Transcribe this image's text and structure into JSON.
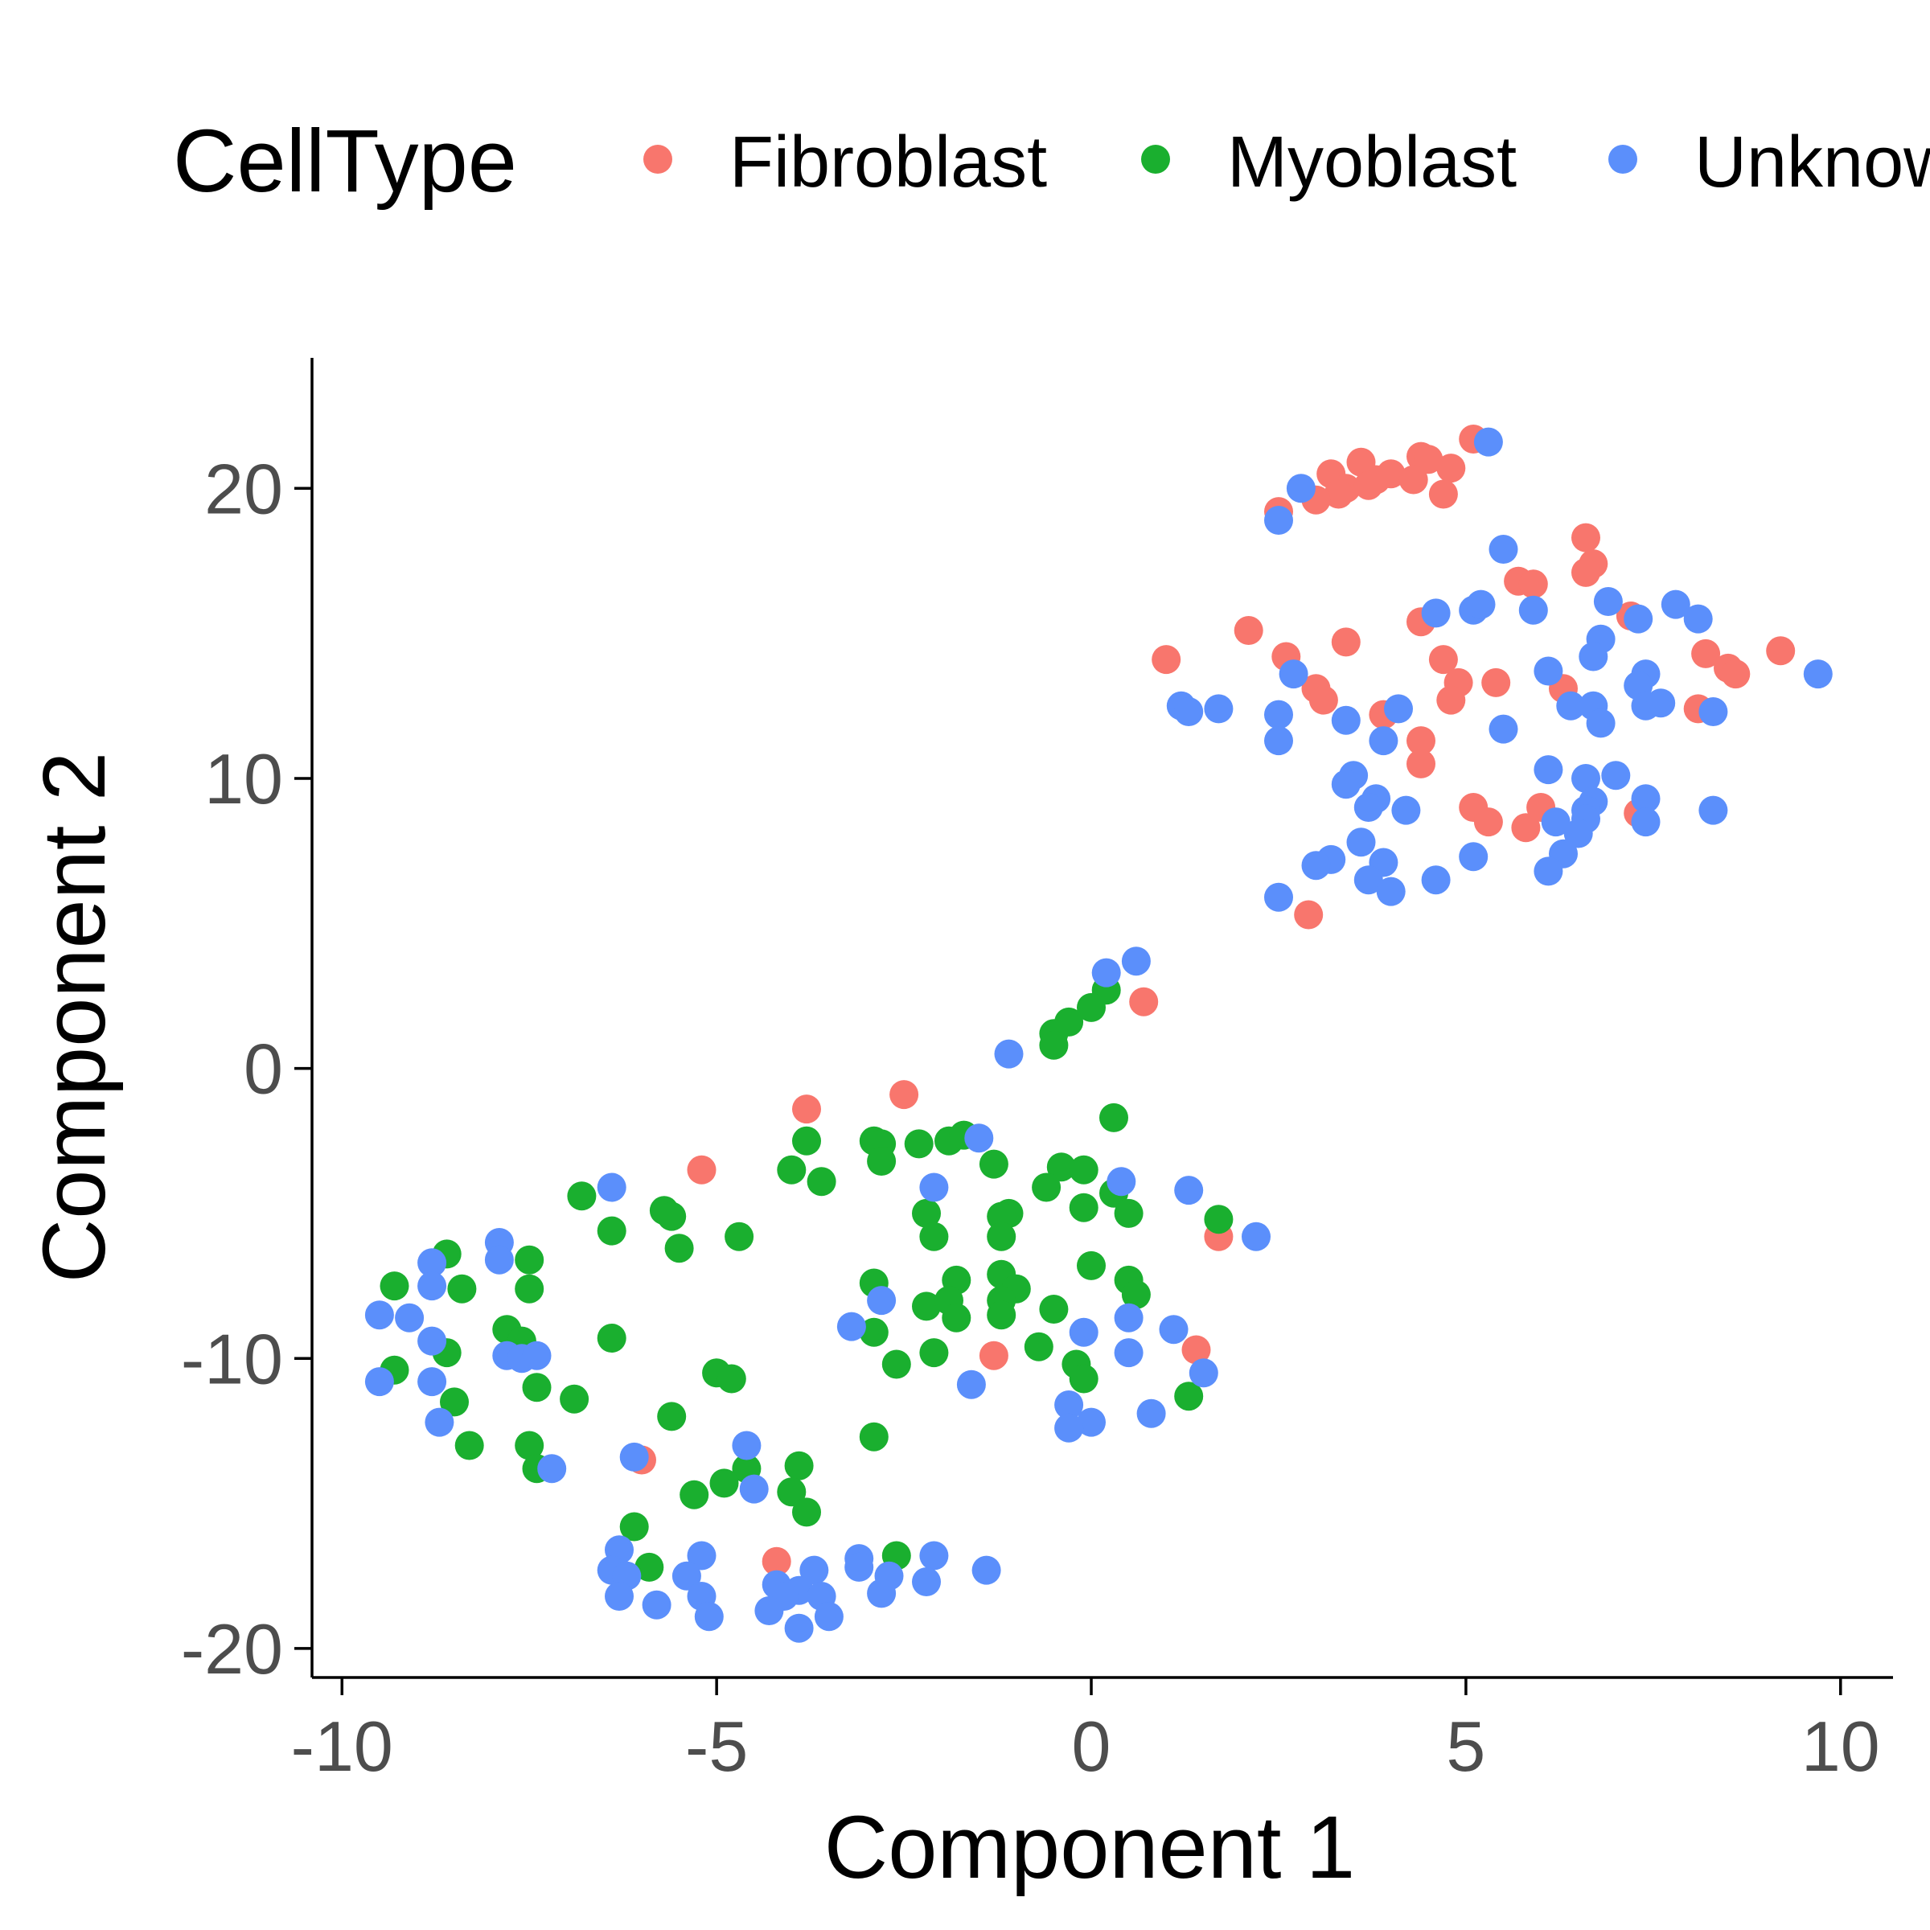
{
  "chart_data": {
    "type": "scatter",
    "xlabel": "Component 1",
    "ylabel": "Component 2",
    "xlim": [
      -10.4,
      10.7
    ],
    "ylim": [
      -21.0,
      24.5
    ],
    "x_ticks": [
      -10,
      -5,
      0,
      5,
      10
    ],
    "y_ticks": [
      -20,
      -10,
      0,
      10,
      20
    ],
    "x_tick_labels": [
      "-10",
      "-5",
      "0",
      "5",
      "10"
    ],
    "y_tick_labels": [
      "-20",
      "-10",
      "0",
      "10",
      "20"
    ],
    "grid": false,
    "legend": {
      "title": "CellType",
      "position": "top",
      "entries": [
        "Fibroblast",
        "Myoblast",
        "Unknown"
      ]
    },
    "colors": {
      "Fibroblast": "#F8766D",
      "Myoblast": "#1AAF2F",
      "Unknown": "#5B8FFB"
    },
    "series": [
      {
        "name": "Fibroblast",
        "points": [
          [
            5.1,
            21.7
          ],
          [
            4.4,
            21.1
          ],
          [
            4.5,
            21.0
          ],
          [
            3.6,
            20.9
          ],
          [
            3.2,
            20.5
          ],
          [
            4.0,
            20.5
          ],
          [
            3.8,
            20.3
          ],
          [
            4.3,
            20.3
          ],
          [
            4.8,
            20.7
          ],
          [
            3.4,
            20.0
          ],
          [
            3.7,
            20.1
          ],
          [
            3.3,
            19.8
          ],
          [
            3.0,
            19.6
          ],
          [
            4.7,
            19.8
          ],
          [
            2.5,
            19.2
          ],
          [
            6.6,
            18.3
          ],
          [
            6.7,
            17.4
          ],
          [
            6.6,
            17.1
          ],
          [
            5.7,
            16.8
          ],
          [
            5.9,
            16.7
          ],
          [
            7.2,
            15.6
          ],
          [
            4.4,
            15.4
          ],
          [
            2.1,
            15.1
          ],
          [
            3.4,
            14.7
          ],
          [
            1.0,
            14.1
          ],
          [
            2.6,
            14.2
          ],
          [
            4.7,
            14.1
          ],
          [
            8.2,
            14.3
          ],
          [
            8.5,
            13.8
          ],
          [
            8.6,
            13.6
          ],
          [
            9.2,
            14.4
          ],
          [
            3.0,
            13.1
          ],
          [
            3.1,
            12.7
          ],
          [
            4.9,
            13.3
          ],
          [
            4.8,
            12.7
          ],
          [
            5.4,
            13.3
          ],
          [
            6.3,
            13.1
          ],
          [
            3.9,
            12.2
          ],
          [
            4.4,
            11.3
          ],
          [
            4.4,
            10.5
          ],
          [
            8.1,
            12.4
          ],
          [
            5.1,
            9.0
          ],
          [
            5.3,
            8.5
          ],
          [
            5.8,
            8.3
          ],
          [
            6.0,
            9.0
          ],
          [
            7.3,
            8.8
          ],
          [
            2.9,
            5.3
          ],
          [
            0.7,
            2.3
          ],
          [
            -2.5,
            -0.9
          ],
          [
            -3.8,
            -1.4
          ],
          [
            -5.2,
            -3.5
          ],
          [
            1.7,
            -5.8
          ],
          [
            1.4,
            -9.7
          ],
          [
            -1.3,
            -9.9
          ],
          [
            -6.0,
            -13.5
          ],
          [
            -4.2,
            -17.0
          ]
        ]
      },
      {
        "name": "Myoblast",
        "points": [
          [
            0.2,
            2.7
          ],
          [
            0.0,
            2.1
          ],
          [
            -0.3,
            1.6
          ],
          [
            -0.5,
            1.2
          ],
          [
            -0.5,
            0.8
          ],
          [
            0.3,
            -1.7
          ],
          [
            -3.8,
            -2.5
          ],
          [
            -2.9,
            -2.5
          ],
          [
            -2.8,
            -2.6
          ],
          [
            -2.3,
            -2.6
          ],
          [
            -1.9,
            -2.5
          ],
          [
            -1.7,
            -2.3
          ],
          [
            -2.8,
            -3.2
          ],
          [
            -1.3,
            -3.3
          ],
          [
            -4.0,
            -3.5
          ],
          [
            -3.6,
            -3.9
          ],
          [
            -0.4,
            -3.4
          ],
          [
            -0.1,
            -3.5
          ],
          [
            -0.6,
            -4.1
          ],
          [
            0.3,
            -4.3
          ],
          [
            -6.8,
            -4.4
          ],
          [
            -5.7,
            -4.9
          ],
          [
            -5.6,
            -5.1
          ],
          [
            -2.2,
            -5.0
          ],
          [
            -1.1,
            -5.0
          ],
          [
            -1.2,
            -5.1
          ],
          [
            -0.1,
            -4.8
          ],
          [
            0.5,
            -5.0
          ],
          [
            1.7,
            -5.2
          ],
          [
            -6.4,
            -5.6
          ],
          [
            -4.7,
            -5.8
          ],
          [
            -2.1,
            -5.8
          ],
          [
            -1.2,
            -5.8
          ],
          [
            -5.5,
            -6.2
          ],
          [
            -8.6,
            -6.4
          ],
          [
            -7.5,
            -6.6
          ],
          [
            -0.0,
            -6.8
          ],
          [
            -9.3,
            -7.5
          ],
          [
            -8.4,
            -7.6
          ],
          [
            -7.5,
            -7.6
          ],
          [
            -2.9,
            -7.4
          ],
          [
            -1.8,
            -7.3
          ],
          [
            -1.2,
            -7.1
          ],
          [
            -1.0,
            -7.6
          ],
          [
            0.5,
            -7.3
          ],
          [
            0.6,
            -7.8
          ],
          [
            -1.2,
            -8.0
          ],
          [
            -2.2,
            -8.2
          ],
          [
            -1.9,
            -8.0
          ],
          [
            -1.8,
            -8.6
          ],
          [
            -1.2,
            -8.5
          ],
          [
            -0.5,
            -8.3
          ],
          [
            -7.8,
            -9.0
          ],
          [
            -7.6,
            -9.4
          ],
          [
            -6.4,
            -9.3
          ],
          [
            -2.9,
            -9.1
          ],
          [
            -8.6,
            -9.8
          ],
          [
            -2.1,
            -9.8
          ],
          [
            -0.7,
            -9.6
          ],
          [
            -0.2,
            -10.2
          ],
          [
            -0.1,
            -10.7
          ],
          [
            -2.6,
            -10.2
          ],
          [
            -9.3,
            -10.4
          ],
          [
            -5.0,
            -10.5
          ],
          [
            -4.8,
            -10.7
          ],
          [
            -7.4,
            -11.0
          ],
          [
            -6.9,
            -11.4
          ],
          [
            -8.5,
            -11.5
          ],
          [
            1.3,
            -11.3
          ],
          [
            -5.6,
            -12.0
          ],
          [
            -2.9,
            -12.7
          ],
          [
            -8.3,
            -13.0
          ],
          [
            -7.5,
            -13.0
          ],
          [
            -7.4,
            -13.8
          ],
          [
            -3.9,
            -13.7
          ],
          [
            -4.6,
            -13.8
          ],
          [
            -4.9,
            -14.3
          ],
          [
            -5.3,
            -14.7
          ],
          [
            -4.0,
            -14.6
          ],
          [
            -3.8,
            -15.3
          ],
          [
            -6.1,
            -15.8
          ],
          [
            -5.9,
            -17.2
          ],
          [
            -2.6,
            -16.8
          ]
        ]
      },
      {
        "name": "Unknown",
        "points": [
          [
            5.3,
            21.6
          ],
          [
            2.8,
            20.0
          ],
          [
            2.5,
            18.9
          ],
          [
            5.5,
            17.9
          ],
          [
            6.9,
            16.1
          ],
          [
            7.8,
            16.0
          ],
          [
            4.6,
            15.7
          ],
          [
            5.1,
            15.8
          ],
          [
            5.2,
            16.0
          ],
          [
            5.9,
            15.8
          ],
          [
            7.3,
            15.5
          ],
          [
            8.1,
            15.5
          ],
          [
            6.8,
            14.8
          ],
          [
            6.7,
            14.2
          ],
          [
            2.7,
            13.6
          ],
          [
            6.1,
            13.7
          ],
          [
            7.4,
            13.6
          ],
          [
            9.7,
            13.6
          ],
          [
            7.3,
            13.2
          ],
          [
            1.2,
            12.5
          ],
          [
            1.3,
            12.3
          ],
          [
            1.7,
            12.4
          ],
          [
            2.5,
            12.2
          ],
          [
            3.4,
            12.0
          ],
          [
            4.1,
            12.4
          ],
          [
            6.4,
            12.5
          ],
          [
            6.7,
            12.5
          ],
          [
            7.4,
            12.5
          ],
          [
            7.6,
            12.6
          ],
          [
            8.3,
            12.3
          ],
          [
            6.8,
            11.9
          ],
          [
            5.5,
            11.7
          ],
          [
            2.5,
            11.3
          ],
          [
            3.9,
            11.3
          ],
          [
            6.1,
            10.3
          ],
          [
            6.6,
            10.0
          ],
          [
            7.0,
            10.1
          ],
          [
            3.5,
            10.1
          ],
          [
            3.4,
            9.8
          ],
          [
            3.8,
            9.3
          ],
          [
            3.7,
            9.0
          ],
          [
            4.2,
            8.9
          ],
          [
            6.7,
            9.2
          ],
          [
            7.4,
            9.3
          ],
          [
            6.6,
            8.9
          ],
          [
            6.2,
            8.5
          ],
          [
            6.6,
            8.6
          ],
          [
            7.4,
            8.5
          ],
          [
            8.3,
            8.9
          ],
          [
            6.5,
            8.1
          ],
          [
            3.6,
            7.8
          ],
          [
            6.3,
            7.4
          ],
          [
            3.2,
            7.2
          ],
          [
            3.0,
            7.0
          ],
          [
            3.9,
            7.1
          ],
          [
            5.1,
            7.3
          ],
          [
            6.1,
            6.8
          ],
          [
            3.7,
            6.5
          ],
          [
            4.6,
            6.5
          ],
          [
            2.5,
            5.9
          ],
          [
            4.0,
            6.1
          ],
          [
            0.6,
            3.7
          ],
          [
            0.2,
            3.3
          ],
          [
            -1.1,
            0.5
          ],
          [
            -1.5,
            -2.4
          ],
          [
            -2.1,
            -4.1
          ],
          [
            0.4,
            -3.9
          ],
          [
            -6.4,
            -4.1
          ],
          [
            1.3,
            -4.2
          ],
          [
            2.2,
            -5.8
          ],
          [
            -7.9,
            -6.0
          ],
          [
            -8.8,
            -6.7
          ],
          [
            -7.9,
            -6.6
          ],
          [
            -8.8,
            -7.5
          ],
          [
            -2.8,
            -8.0
          ],
          [
            -9.5,
            -8.5
          ],
          [
            -9.1,
            -8.6
          ],
          [
            -0.1,
            -9.1
          ],
          [
            -3.2,
            -8.9
          ],
          [
            -8.8,
            -9.4
          ],
          [
            -7.8,
            -9.9
          ],
          [
            -7.6,
            -10.0
          ],
          [
            -7.4,
            -9.9
          ],
          [
            0.5,
            -9.8
          ],
          [
            1.1,
            -9.0
          ],
          [
            0.5,
            -8.6
          ],
          [
            1.5,
            -10.5
          ],
          [
            -9.5,
            -10.8
          ],
          [
            -8.8,
            -10.8
          ],
          [
            -1.6,
            -10.9
          ],
          [
            -0.3,
            -11.6
          ],
          [
            0.0,
            -12.2
          ],
          [
            -0.3,
            -12.4
          ],
          [
            0.8,
            -11.9
          ],
          [
            -8.7,
            -12.2
          ],
          [
            -4.6,
            -13.0
          ],
          [
            -6.1,
            -13.4
          ],
          [
            -7.2,
            -13.8
          ],
          [
            -4.5,
            -14.5
          ],
          [
            -6.3,
            -16.6
          ],
          [
            -6.4,
            -17.3
          ],
          [
            -5.2,
            -16.8
          ],
          [
            -6.2,
            -17.5
          ],
          [
            -5.4,
            -17.5
          ],
          [
            -6.3,
            -18.2
          ],
          [
            -5.8,
            -18.5
          ],
          [
            -5.2,
            -18.2
          ],
          [
            -5.1,
            -18.9
          ],
          [
            -4.2,
            -17.8
          ],
          [
            -3.7,
            -17.3
          ],
          [
            -3.9,
            -18.0
          ],
          [
            -4.1,
            -18.2
          ],
          [
            -3.6,
            -18.2
          ],
          [
            -3.1,
            -16.9
          ],
          [
            -3.1,
            -17.2
          ],
          [
            -2.7,
            -17.5
          ],
          [
            -2.1,
            -16.8
          ],
          [
            -2.2,
            -17.7
          ],
          [
            -2.8,
            -18.1
          ],
          [
            -1.4,
            -17.3
          ],
          [
            -4.3,
            -18.7
          ],
          [
            -3.9,
            -19.3
          ],
          [
            -3.5,
            -18.9
          ]
        ]
      }
    ]
  }
}
